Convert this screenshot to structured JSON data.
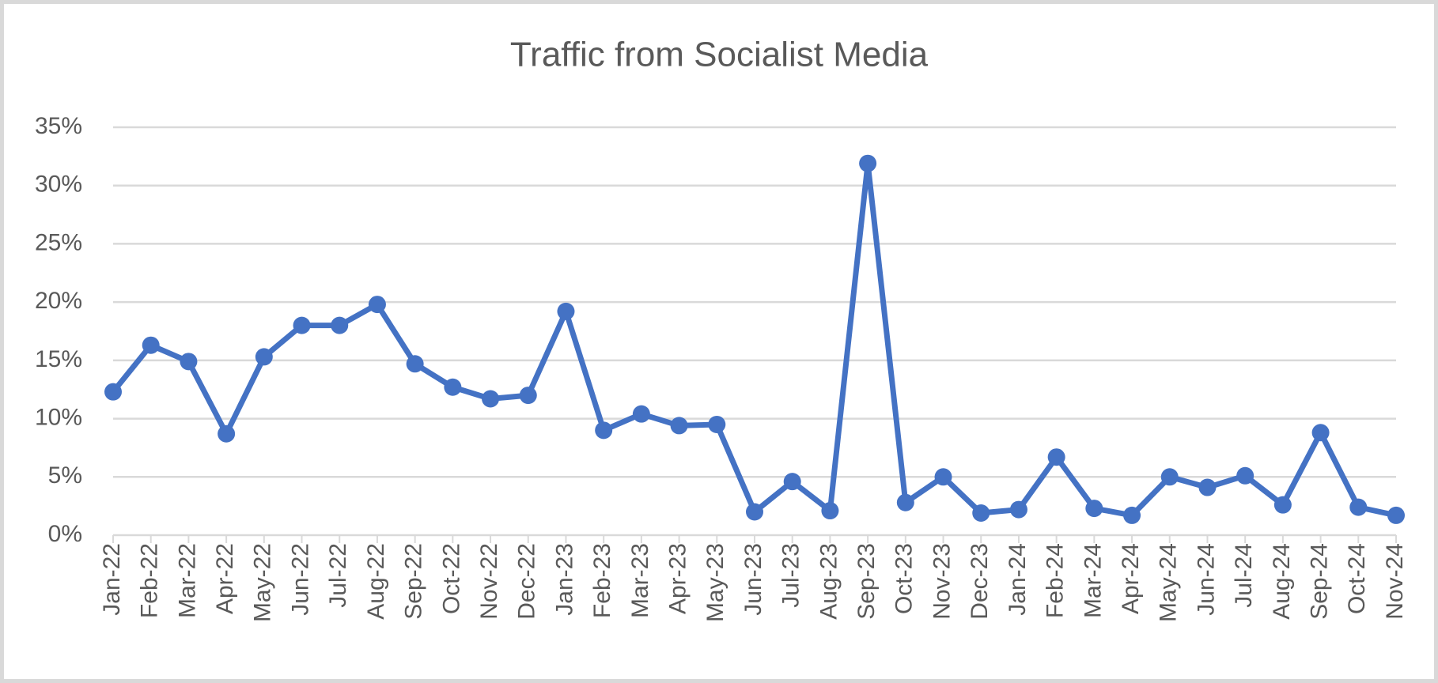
{
  "chart_data": {
    "type": "line",
    "title": "Traffic from Socialist Media",
    "categories": [
      "Jan-22",
      "Feb-22",
      "Mar-22",
      "Apr-22",
      "May-22",
      "Jun-22",
      "Jul-22",
      "Aug-22",
      "Sep-22",
      "Oct-22",
      "Nov-22",
      "Dec-22",
      "Jan-23",
      "Feb-23",
      "Mar-23",
      "Apr-23",
      "May-23",
      "Jun-23",
      "Jul-23",
      "Aug-23",
      "Sep-23",
      "Oct-23",
      "Nov-23",
      "Dec-23",
      "Jan-24",
      "Feb-24",
      "Mar-24",
      "Apr-24",
      "May-24",
      "Jun-24",
      "Jul-24",
      "Aug-24",
      "Sep-24",
      "Oct-24",
      "Nov-24"
    ],
    "values": [
      12.3,
      16.3,
      14.9,
      8.7,
      15.3,
      18.0,
      18.0,
      19.8,
      14.7,
      12.7,
      11.7,
      12.0,
      19.2,
      9.0,
      10.4,
      9.4,
      9.5,
      2.0,
      4.6,
      2.1,
      31.9,
      2.8,
      5.0,
      1.9,
      2.2,
      6.7,
      2.3,
      1.7,
      5.0,
      4.1,
      5.1,
      2.6,
      8.8,
      2.4,
      1.7
    ],
    "color": "#4472c4",
    "ylim": [
      0,
      35
    ],
    "yticks": [
      {
        "value": 0,
        "label": "0%"
      },
      {
        "value": 5,
        "label": "5%"
      },
      {
        "value": 10,
        "label": "10%"
      },
      {
        "value": 15,
        "label": "15%"
      },
      {
        "value": 20,
        "label": "20%"
      },
      {
        "value": 25,
        "label": "25%"
      },
      {
        "value": 30,
        "label": "30%"
      },
      {
        "value": 35,
        "label": "35%"
      }
    ],
    "grid": true
  }
}
